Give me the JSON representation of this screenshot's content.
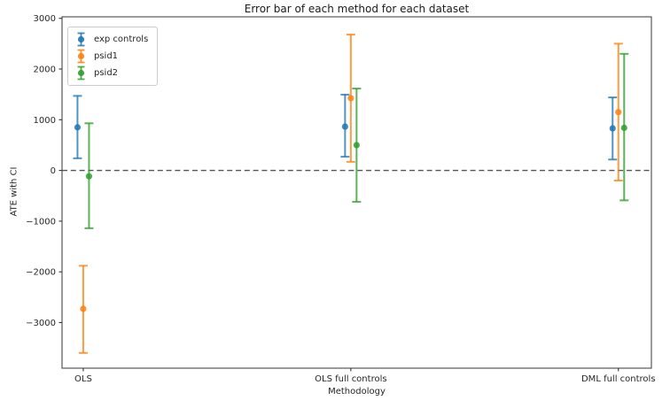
{
  "chart_data": {
    "type": "errorbar",
    "title": "Error bar of each method for each dataset",
    "xlabel": "Methodology",
    "ylabel": "ATE with CI",
    "categories": [
      "OLS",
      "OLS full controls",
      "DML full controls"
    ],
    "yticks": [
      3000,
      2000,
      1000,
      0,
      -1000,
      -2000,
      -3000
    ],
    "ylim": [
      -3900,
      3030
    ],
    "grid": false,
    "legend_position": "upper left",
    "zero_reference_line": {
      "y": 0,
      "style": "dashed",
      "color": "#555555"
    },
    "series": [
      {
        "name": "exp controls",
        "color": "#1f77b4",
        "points": [
          {
            "category": "OLS",
            "value": 850,
            "ci_low": 240,
            "ci_high": 1470
          },
          {
            "category": "OLS full controls",
            "value": 865,
            "ci_low": 270,
            "ci_high": 1495
          },
          {
            "category": "DML full controls",
            "value": 830,
            "ci_low": 215,
            "ci_high": 1440
          }
        ]
      },
      {
        "name": "psid1",
        "color": "#ff7f0e",
        "points": [
          {
            "category": "OLS",
            "value": -2730,
            "ci_low": -3600,
            "ci_high": -1880
          },
          {
            "category": "OLS full controls",
            "value": 1425,
            "ci_low": 170,
            "ci_high": 2680
          },
          {
            "category": "DML full controls",
            "value": 1150,
            "ci_low": -200,
            "ci_high": 2500
          }
        ]
      },
      {
        "name": "psid2",
        "color": "#2ca02c",
        "points": [
          {
            "category": "OLS",
            "value": -115,
            "ci_low": -1140,
            "ci_high": 930
          },
          {
            "category": "OLS full controls",
            "value": 500,
            "ci_low": -620,
            "ci_high": 1615
          },
          {
            "category": "DML full controls",
            "value": 840,
            "ci_low": -590,
            "ci_high": 2300
          }
        ]
      }
    ]
  }
}
